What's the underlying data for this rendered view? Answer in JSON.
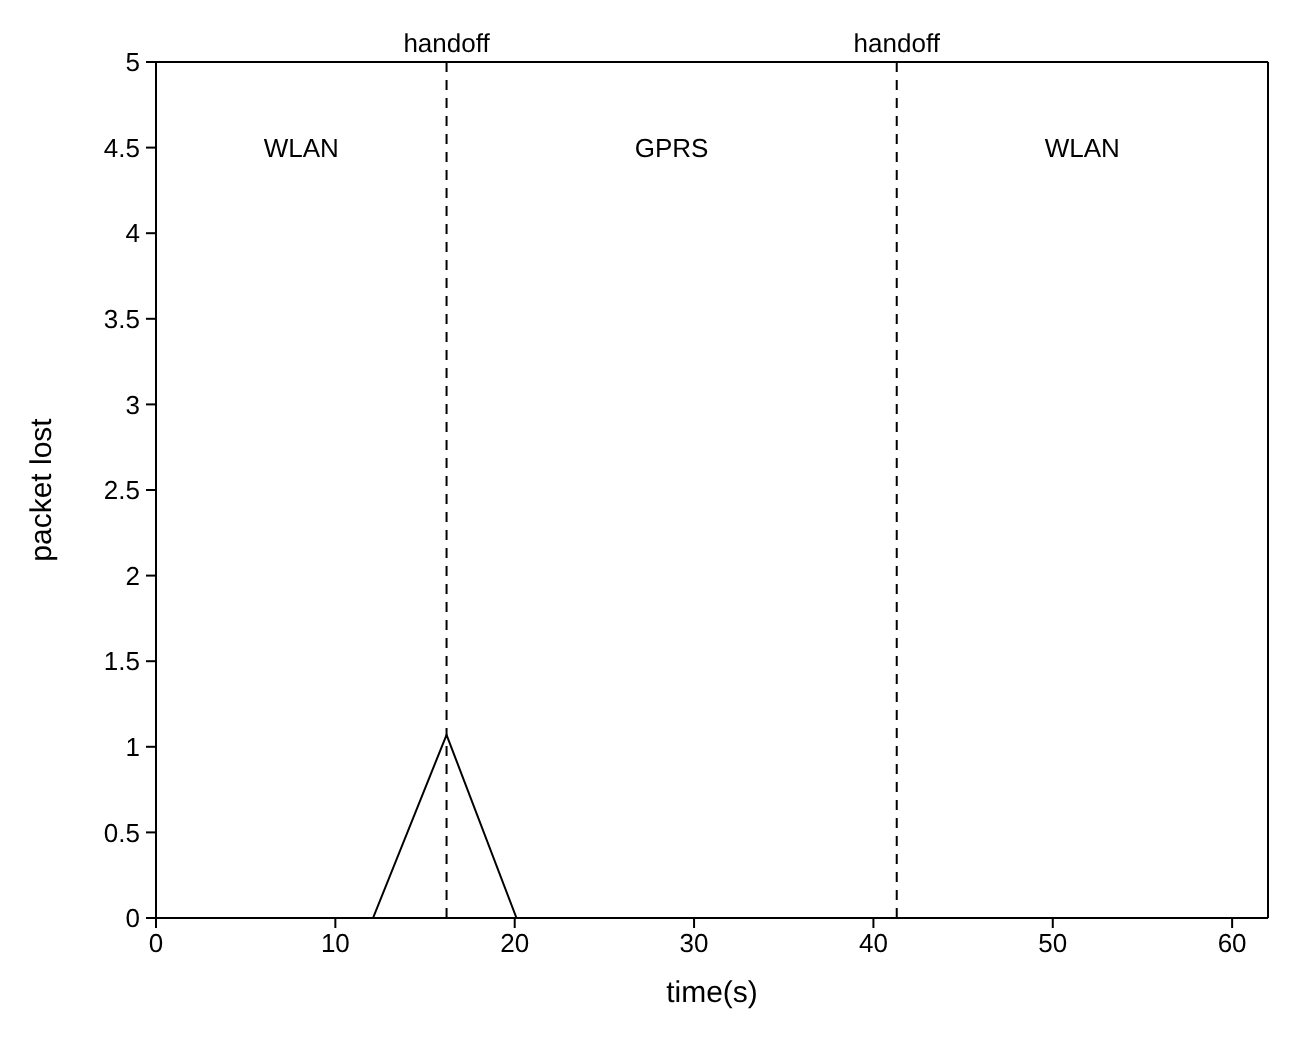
{
  "chart_data": {
    "type": "line",
    "xlabel": "time(s)",
    "ylabel": "packet lost",
    "xlim": [
      0,
      62
    ],
    "xticks": [
      0,
      10,
      20,
      30,
      40,
      50,
      60
    ],
    "ylim": [
      0,
      5
    ],
    "yticks": [
      0,
      0.5,
      1,
      1.5,
      2,
      2.5,
      3,
      3.5,
      4,
      4.5,
      5
    ],
    "x": [
      0,
      12.1,
      16.2,
      20.1,
      62
    ],
    "series": [
      {
        "color": "#000000",
        "values": [
          0,
          0,
          1.07,
          0,
          0
        ]
      }
    ],
    "grid": false,
    "legend": false,
    "marker": "none",
    "line_style": "solid",
    "ref_lines": [
      {
        "axis": "x",
        "value": 16.2,
        "label": "handoff",
        "color": "#000000",
        "line_style": "dashed"
      },
      {
        "axis": "x",
        "value": 41.3,
        "label": "handoff",
        "color": "#000000",
        "line_style": "dashed"
      }
    ],
    "annotations": [
      "WLAN",
      "GPRS",
      "WLAN"
    ]
  }
}
